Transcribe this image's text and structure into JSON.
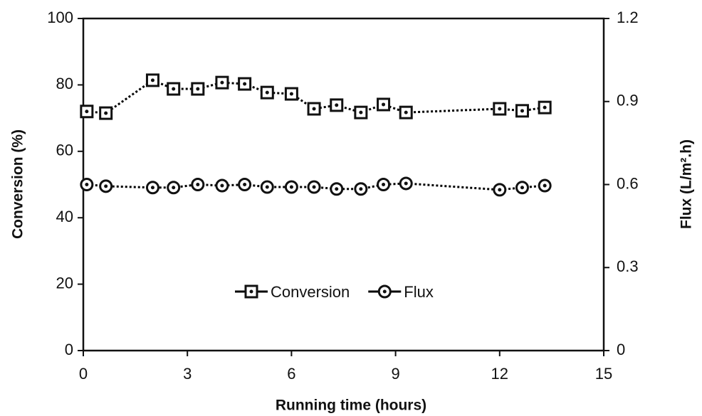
{
  "chart_data": {
    "type": "line",
    "xlabel": "Running time (hours)",
    "ylabel": "Conversion (%)",
    "y2label": "Flux (L/m².h)",
    "x": [
      0.1,
      0.65,
      2.0,
      2.6,
      3.3,
      4.0,
      4.65,
      5.3,
      6.0,
      6.65,
      7.3,
      8.0,
      8.65,
      9.3,
      12.0,
      12.65,
      13.3
    ],
    "series": [
      {
        "name": "Conversion",
        "color": "#000000",
        "marker": "square",
        "values": [
          72,
          71.5,
          81.4,
          78.8,
          78.8,
          80.7,
          80.3,
          77.7,
          77.3,
          72.8,
          73.9,
          71.7,
          74.1,
          71.7,
          72.8,
          72.2,
          73.2
        ]
      },
      {
        "name": "Flux",
        "color": "#000000",
        "marker": "circle",
        "axis": "y2",
        "values": [
          0.6,
          0.594,
          0.589,
          0.589,
          0.6,
          0.596,
          0.6,
          0.591,
          0.591,
          0.591,
          0.584,
          0.584,
          0.6,
          0.604,
          0.581,
          0.589,
          0.596
        ]
      }
    ],
    "xlim": [
      0,
      15
    ],
    "xticks": [
      0,
      3,
      6,
      9,
      12,
      15
    ],
    "ylim": [
      0,
      100
    ],
    "yticks": [
      0,
      20,
      40,
      60,
      80,
      100
    ],
    "y2lim": [
      0,
      1.2
    ],
    "y2ticks": [
      0,
      0.3,
      0.6,
      0.9,
      1.2
    ],
    "legend": "lower center",
    "grid": false
  }
}
